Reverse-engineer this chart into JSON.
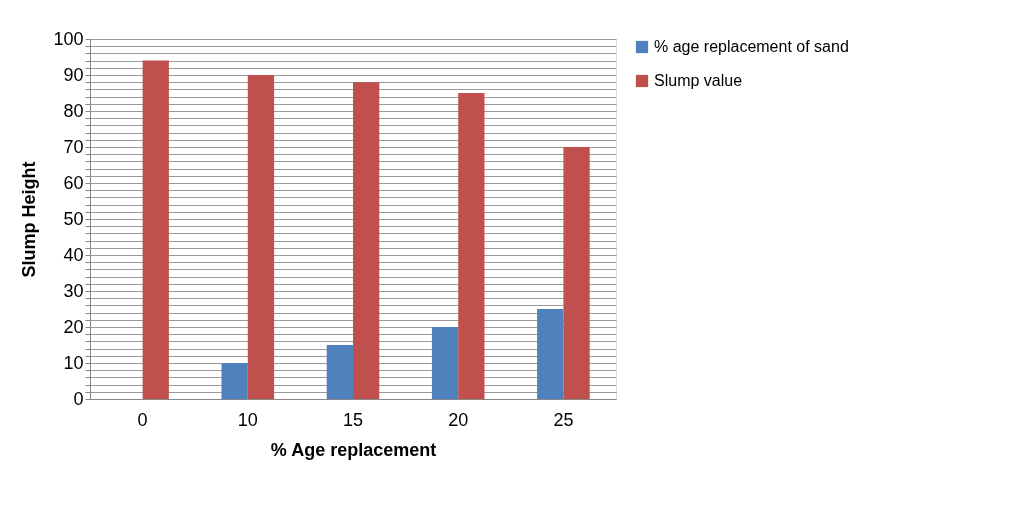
{
  "chart_data": {
    "type": "bar",
    "xlabel": "% Age replacement",
    "ylabel": "Slump Height",
    "categories": [
      "0",
      "10",
      "15",
      "20",
      "25"
    ],
    "series": [
      {
        "name": "% age replacement of sand",
        "color": "#4f81bd",
        "values": [
          0,
          10,
          15,
          20,
          25
        ]
      },
      {
        "name": "Slump value",
        "color": "#c0504d",
        "values": [
          94,
          90,
          88,
          85,
          70
        ]
      }
    ],
    "ylim": [
      0,
      100
    ],
    "yticks": [
      0,
      {
        "value": 2,
        "label": null
      },
      {
        "value": 4,
        "label": null
      },
      {
        "value": 6,
        "label": null
      },
      {
        "value": 8,
        "label": null
      },
      10,
      {
        "value": 12,
        "label": null
      },
      {
        "value": 14,
        "label": null
      },
      {
        "value": 16,
        "label": null
      },
      {
        "value": 18,
        "label": null
      },
      20,
      {
        "value": 22,
        "label": null
      },
      {
        "value": 24,
        "label": null
      },
      {
        "value": 26,
        "label": null
      },
      {
        "value": 28,
        "label": null
      },
      30,
      {
        "value": 32,
        "label": null
      },
      {
        "value": 34,
        "label": null
      },
      {
        "value": 36,
        "label": null
      },
      {
        "value": 38,
        "label": null
      },
      40,
      {
        "value": 42,
        "label": null
      },
      {
        "value": 44,
        "label": null
      },
      {
        "value": 46,
        "label": null
      },
      {
        "value": 48,
        "label": null
      },
      50,
      {
        "value": 52,
        "label": null
      },
      {
        "value": 54,
        "label": null
      },
      {
        "value": 56,
        "label": null
      },
      {
        "value": 58,
        "label": null
      },
      60,
      {
        "value": 62,
        "label": null
      },
      {
        "value": 64,
        "label": null
      },
      {
        "value": 66,
        "label": null
      },
      {
        "value": 68,
        "label": null
      },
      70,
      {
        "value": 72,
        "label": null
      },
      {
        "value": 74,
        "label": null
      },
      {
        "value": 76,
        "label": null
      },
      {
        "value": 78,
        "label": null
      },
      80,
      {
        "value": 82,
        "label": null
      },
      {
        "value": 84,
        "label": null
      },
      {
        "value": 86,
        "label": null
      },
      {
        "value": 88,
        "label": null
      },
      90,
      {
        "value": 92,
        "label": null
      },
      {
        "value": 94,
        "label": null
      },
      {
        "value": 96,
        "label": null
      },
      {
        "value": 98,
        "label": null
      },
      100
    ],
    "grid": "y",
    "legend": "right"
  }
}
